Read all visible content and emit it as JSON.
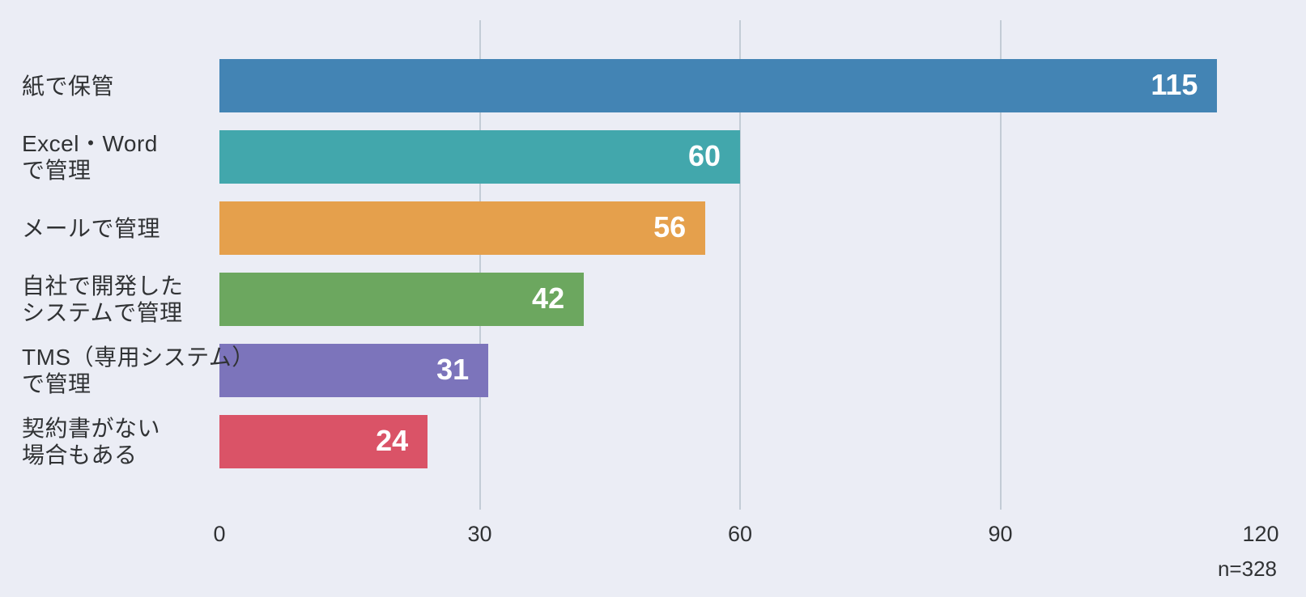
{
  "chart_data": {
    "type": "bar",
    "orientation": "horizontal",
    "title": "",
    "xlabel": "",
    "ylabel": "",
    "categories": [
      "紙で保管",
      "Excel・Word\nで管理",
      "メールで管理",
      "自社で開発した\nシステムで管理",
      "TMS（専用システム）\nで管理",
      "契約書がない\n場合もある"
    ],
    "values": [
      115,
      60,
      56,
      42,
      31,
      24
    ],
    "bar_colors": [
      "#4384B4",
      "#42A7AC",
      "#E5A04C",
      "#6CA75F",
      "#7C74BB",
      "#DA5367"
    ],
    "xlim": [
      0,
      120
    ],
    "x_ticks": [
      "0",
      "30",
      "60",
      "90",
      "120"
    ],
    "x_tick_values": [
      0,
      30,
      60,
      90,
      120
    ],
    "gridline_ticks": [
      30,
      60,
      90
    ],
    "grid": true,
    "legend": false,
    "value_labels_inside_bars": true,
    "sample_size_label": "n=328"
  },
  "colors": {
    "background": "#EBEDF5",
    "gridline": "#C3CCD6",
    "text": "#303234",
    "value_label_text": "#FFFFFF"
  }
}
